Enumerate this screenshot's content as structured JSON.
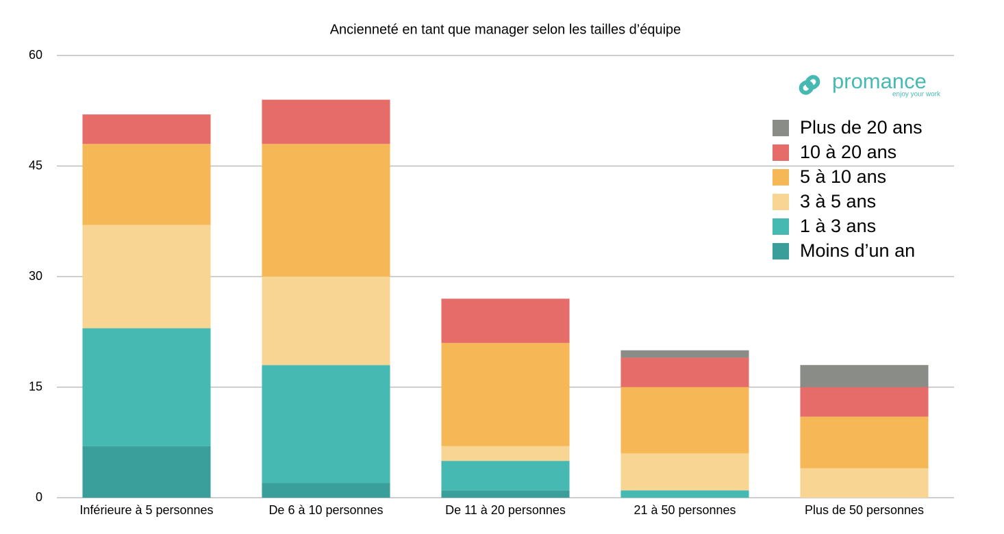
{
  "chart_data": {
    "type": "stacked-bar",
    "title": "Ancienneté en tant que manager  selon les tailles d’équipe",
    "brand": {
      "name": "promance",
      "tagline": "enjoy your work"
    },
    "categories": [
      "Inférieure à 5 personnes",
      "De 6 à 10 personnes",
      "De 11 à 20 personnes",
      "21 à 50 personnes",
      "Plus de 50 personnes"
    ],
    "series": [
      {
        "name": "Moins d’un an",
        "color": "#3a9e9a",
        "values": [
          7,
          2,
          1,
          0,
          0
        ]
      },
      {
        "name": "1 à 3 ans",
        "color": "#47b9b3",
        "values": [
          16,
          16,
          4,
          1,
          0
        ]
      },
      {
        "name": "3 à 5 ans",
        "color": "#f9d594",
        "values": [
          14,
          12,
          2,
          5,
          4
        ]
      },
      {
        "name": "5 à 10 ans",
        "color": "#f6b857",
        "values": [
          11,
          18,
          14,
          9,
          7
        ]
      },
      {
        "name": "10 à 20 ans",
        "color": "#e56c69",
        "values": [
          4,
          6,
          6,
          4,
          4
        ]
      },
      {
        "name": "Plus de 20 ans",
        "color": "#8a8c87",
        "values": [
          0,
          0,
          0,
          1,
          3
        ]
      }
    ],
    "ylim": [
      0,
      60
    ],
    "yticks": [
      0,
      15,
      30,
      45,
      60
    ],
    "grid": true,
    "legend": "upper right"
  }
}
